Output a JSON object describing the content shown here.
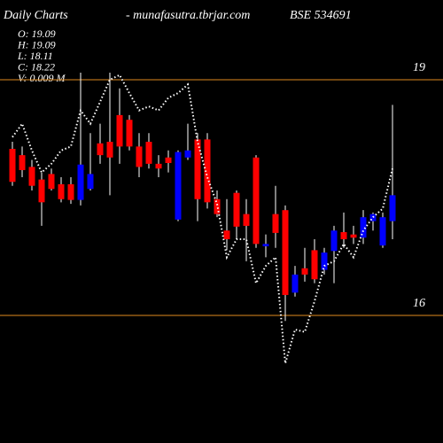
{
  "chart_data": {
    "type": "candlestick",
    "title": "Daily Charts",
    "subtitle": "- munafasutra.tbrjar.com",
    "symbol": "BSE 534691",
    "info": [
      "O: 19.09",
      "H: 19.09",
      "L: 18.11",
      "C: 18.22",
      "V: 0.009 M"
    ],
    "categories": [
      null,
      null,
      null,
      null,
      null,
      null,
      null,
      null,
      null,
      null,
      null,
      null,
      null,
      null,
      null,
      null,
      null,
      null,
      null,
      null,
      null,
      null,
      null,
      null,
      null,
      null,
      null,
      null,
      null,
      null,
      null,
      null,
      null,
      null,
      null,
      null,
      null,
      null,
      null,
      null
    ],
    "open": [
      18.12,
      18.04,
      17.89,
      17.73,
      17.8,
      17.67,
      17.67,
      17.47,
      17.61,
      18.19,
      18.21,
      18.55,
      18.49,
      18.15,
      18.21,
      17.93,
      18.01,
      17.22,
      18.01,
      18.24,
      18.24,
      17.48,
      17.08,
      17.56,
      17.29,
      18.01,
      16.88,
      17.29,
      17.34,
      16.29,
      16.6,
      16.83,
      16.58,
      16.82,
      17.06,
      17.03,
      16.99,
      17.2,
      16.89,
      17.2
    ],
    "high": [
      18.21,
      18.15,
      17.98,
      17.82,
      17.87,
      17.76,
      17.76,
      19.09,
      18.32,
      18.44,
      19.09,
      18.89,
      18.55,
      18.32,
      18.32,
      18.04,
      18.1,
      18.1,
      18.44,
      18.32,
      18.32,
      17.59,
      17.48,
      17.59,
      17.48,
      18.04,
      17.03,
      17.65,
      17.4,
      16.63,
      16.86,
      16.97,
      16.86,
      17.14,
      17.31,
      17.14,
      17.34,
      17.31,
      17.31,
      18.68
    ],
    "low": [
      17.65,
      17.76,
      17.59,
      17.14,
      17.59,
      17.44,
      17.42,
      17.4,
      17.59,
      17.93,
      17.53,
      17.93,
      18.1,
      17.76,
      17.87,
      17.76,
      17.82,
      17.2,
      17.98,
      17.2,
      17.36,
      17.25,
      16.83,
      16.97,
      16.69,
      16.86,
      16.74,
      16.86,
      15.93,
      16.24,
      16.43,
      16.41,
      16.52,
      16.41,
      16.86,
      16.91,
      16.91,
      17.08,
      16.86,
      16.97
    ],
    "close": [
      17.7,
      17.85,
      17.65,
      17.44,
      17.61,
      17.48,
      17.47,
      17.92,
      17.8,
      18.04,
      18.01,
      18.15,
      18.15,
      17.89,
      17.93,
      17.87,
      17.94,
      18.08,
      18.1,
      17.48,
      17.44,
      17.29,
      16.97,
      17.13,
      17.14,
      16.91,
      16.91,
      17.05,
      16.26,
      16.52,
      16.52,
      16.46,
      16.8,
      17.08,
      16.97,
      16.99,
      17.25,
      17.29,
      17.25,
      17.53
    ],
    "up_color": "#0000ff",
    "down_color": "#ff0000",
    "line": {
      "color": "#ffffff",
      "values": [
        18.27,
        18.44,
        18.1,
        17.82,
        17.93,
        18.1,
        18.15,
        18.61,
        18.44,
        18.72,
        19.0,
        19.06,
        18.83,
        18.61,
        18.66,
        18.61,
        18.77,
        18.83,
        18.94,
        18.21,
        17.76,
        17.42,
        16.74,
        16.97,
        16.97,
        16.41,
        16.63,
        16.74,
        15.39,
        15.82,
        15.79,
        16.18,
        16.63,
        16.69,
        16.91,
        16.74,
        17.08,
        17.25,
        17.36,
        17.87
      ]
    },
    "ylim": [
      14.376,
      20.015
    ],
    "yticks": [
      19,
      16
    ],
    "grid_color": "#e08a1e"
  }
}
